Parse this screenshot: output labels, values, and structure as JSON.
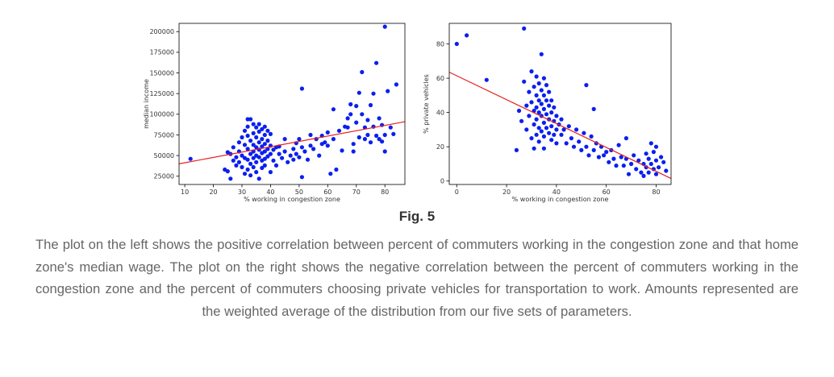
{
  "figure_label": "Fig. 5",
  "caption": "The plot on the left shows the positive correlation between percent of commuters working in the congestion zone and that home zone's median wage. The plot on the right shows the negative correlation between the percent of commuters working in the congestion zone and the percent of commuters choosing private vehicles for transportation to work. Amounts represented are the weighted average of the distribution from our five sets of parameters.",
  "colors": {
    "points": "#0a1ff0",
    "trend_line": "#e8201e",
    "axes": "#000000"
  },
  "chart_data": [
    {
      "type": "scatter",
      "xlabel": "% working in congestion zone",
      "ylabel": "median income",
      "xlim": [
        8,
        87
      ],
      "ylim": [
        15000,
        210000
      ],
      "x_ticks": [
        10,
        20,
        30,
        40,
        50,
        60,
        70,
        80
      ],
      "y_ticks": [
        25000,
        50000,
        75000,
        100000,
        125000,
        150000,
        175000,
        200000
      ],
      "grid": false,
      "trend_line": [
        [
          8,
          40000
        ],
        [
          87,
          91000
        ]
      ],
      "points": [
        [
          12,
          46000
        ],
        [
          24,
          33000
        ],
        [
          25,
          31000
        ],
        [
          25,
          54000
        ],
        [
          26,
          22000
        ],
        [
          26,
          52000
        ],
        [
          27,
          60000
        ],
        [
          27,
          44000
        ],
        [
          28,
          38000
        ],
        [
          28,
          48000
        ],
        [
          29,
          66000
        ],
        [
          29,
          55000
        ],
        [
          29,
          42000
        ],
        [
          30,
          72000
        ],
        [
          30,
          50000
        ],
        [
          30,
          36000
        ],
        [
          31,
          80000
        ],
        [
          31,
          63000
        ],
        [
          31,
          47000
        ],
        [
          31,
          28000
        ],
        [
          32,
          94000
        ],
        [
          32,
          85000
        ],
        [
          32,
          74000
        ],
        [
          32,
          58000
        ],
        [
          32,
          45000
        ],
        [
          32,
          33000
        ],
        [
          33,
          94000
        ],
        [
          33,
          68000
        ],
        [
          33,
          52000
        ],
        [
          33,
          40000
        ],
        [
          33,
          26000
        ],
        [
          34,
          88000
        ],
        [
          34,
          77000
        ],
        [
          34,
          63000
        ],
        [
          34,
          55000
        ],
        [
          34,
          47000
        ],
        [
          34,
          36000
        ],
        [
          35,
          84000
        ],
        [
          35,
          72000
        ],
        [
          35,
          60000
        ],
        [
          35,
          50000
        ],
        [
          35,
          42000
        ],
        [
          35,
          30000
        ],
        [
          36,
          88000
        ],
        [
          36,
          79000
        ],
        [
          36,
          66000
        ],
        [
          36,
          57000
        ],
        [
          36,
          48000
        ],
        [
          36,
          22000
        ],
        [
          37,
          82000
        ],
        [
          37,
          70000
        ],
        [
          37,
          61000
        ],
        [
          37,
          53000
        ],
        [
          37,
          44000
        ],
        [
          37,
          35000
        ],
        [
          38,
          85000
        ],
        [
          38,
          75000
        ],
        [
          38,
          64000
        ],
        [
          38,
          55000
        ],
        [
          38,
          46000
        ],
        [
          38,
          38000
        ],
        [
          39,
          80000
        ],
        [
          39,
          68000
        ],
        [
          39,
          58000
        ],
        [
          39,
          49000
        ],
        [
          40,
          76000
        ],
        [
          40,
          62000
        ],
        [
          40,
          52000
        ],
        [
          40,
          30000
        ],
        [
          41,
          57000
        ],
        [
          41,
          44000
        ],
        [
          42,
          60000
        ],
        [
          42,
          38000
        ],
        [
          43,
          52000
        ],
        [
          43,
          61000
        ],
        [
          44,
          47000
        ],
        [
          45,
          70000
        ],
        [
          45,
          55000
        ],
        [
          46,
          42000
        ],
        [
          47,
          50000
        ],
        [
          48,
          58000
        ],
        [
          48,
          45000
        ],
        [
          49,
          65000
        ],
        [
          49,
          52000
        ],
        [
          50,
          48000
        ],
        [
          50,
          70000
        ],
        [
          51,
          131000
        ],
        [
          51,
          60000
        ],
        [
          51,
          24000
        ],
        [
          52,
          55000
        ],
        [
          53,
          45000
        ],
        [
          54,
          62000
        ],
        [
          54,
          75000
        ],
        [
          55,
          58000
        ],
        [
          56,
          70000
        ],
        [
          57,
          50000
        ],
        [
          58,
          64000
        ],
        [
          58,
          74000
        ],
        [
          59,
          66000
        ],
        [
          60,
          78000
        ],
        [
          60,
          62000
        ],
        [
          61,
          28000
        ],
        [
          62,
          70000
        ],
        [
          62,
          106000
        ],
        [
          63,
          33000
        ],
        [
          64,
          80000
        ],
        [
          65,
          56000
        ],
        [
          66,
          85000
        ],
        [
          67,
          95000
        ],
        [
          67,
          84000
        ],
        [
          68,
          112000
        ],
        [
          68,
          100000
        ],
        [
          69,
          64000
        ],
        [
          69,
          55000
        ],
        [
          70,
          90000
        ],
        [
          70,
          110000
        ],
        [
          71,
          72000
        ],
        [
          71,
          126000
        ],
        [
          72,
          151000
        ],
        [
          72,
          100000
        ],
        [
          73,
          84000
        ],
        [
          73,
          70000
        ],
        [
          74,
          93000
        ],
        [
          74,
          75000
        ],
        [
          75,
          111000
        ],
        [
          75,
          66000
        ],
        [
          76,
          85000
        ],
        [
          76,
          125000
        ],
        [
          77,
          74000
        ],
        [
          77,
          162000
        ],
        [
          78,
          70000
        ],
        [
          78,
          95000
        ],
        [
          79,
          67000
        ],
        [
          79,
          87000
        ],
        [
          80,
          206000
        ],
        [
          80,
          55000
        ],
        [
          80,
          75000
        ],
        [
          81,
          128000
        ],
        [
          82,
          84000
        ],
        [
          83,
          76000
        ],
        [
          84,
          136000
        ]
      ]
    },
    {
      "type": "scatter",
      "xlabel": "% working in congestion zone",
      "ylabel": "% private vehicles",
      "xlim": [
        -3,
        86
      ],
      "ylim": [
        -2,
        92
      ],
      "x_ticks": [
        0,
        20,
        40,
        60,
        80
      ],
      "y_ticks": [
        0,
        20,
        40,
        60,
        80
      ],
      "grid": false,
      "trend_line": [
        [
          -3,
          63.5
        ],
        [
          86,
          1.5
        ]
      ],
      "points": [
        [
          0,
          80
        ],
        [
          4,
          85
        ],
        [
          12,
          59
        ],
        [
          24,
          18
        ],
        [
          25,
          41
        ],
        [
          26,
          35
        ],
        [
          27,
          89
        ],
        [
          27,
          58
        ],
        [
          28,
          44
        ],
        [
          28,
          30
        ],
        [
          29,
          52
        ],
        [
          29,
          38
        ],
        [
          30,
          64
        ],
        [
          30,
          46
        ],
        [
          30,
          25
        ],
        [
          31,
          55
        ],
        [
          31,
          41
        ],
        [
          31,
          33
        ],
        [
          31,
          19
        ],
        [
          32,
          61
        ],
        [
          32,
          50
        ],
        [
          32,
          43
        ],
        [
          32,
          36
        ],
        [
          32,
          27
        ],
        [
          33,
          57
        ],
        [
          33,
          47
        ],
        [
          33,
          40
        ],
        [
          33,
          31
        ],
        [
          33,
          23
        ],
        [
          34,
          74
        ],
        [
          34,
          53
        ],
        [
          34,
          45
        ],
        [
          34,
          38
        ],
        [
          34,
          29
        ],
        [
          35,
          60
        ],
        [
          35,
          50
        ],
        [
          35,
          42
        ],
        [
          35,
          34
        ],
        [
          35,
          26
        ],
        [
          35,
          19
        ],
        [
          36,
          56
        ],
        [
          36,
          47
        ],
        [
          36,
          39
        ],
        [
          36,
          31
        ],
        [
          37,
          52
        ],
        [
          37,
          44
        ],
        [
          37,
          36
        ],
        [
          37,
          28
        ],
        [
          38,
          47
        ],
        [
          38,
          40
        ],
        [
          38,
          32
        ],
        [
          38,
          24
        ],
        [
          39,
          43
        ],
        [
          39,
          35
        ],
        [
          39,
          27
        ],
        [
          40,
          38
        ],
        [
          40,
          30
        ],
        [
          40,
          22
        ],
        [
          41,
          33
        ],
        [
          42,
          36
        ],
        [
          42,
          27
        ],
        [
          43,
          30
        ],
        [
          44,
          22
        ],
        [
          45,
          32
        ],
        [
          46,
          25
        ],
        [
          47,
          20
        ],
        [
          48,
          30
        ],
        [
          49,
          23
        ],
        [
          50,
          18
        ],
        [
          51,
          28
        ],
        [
          52,
          56
        ],
        [
          52,
          20
        ],
        [
          53,
          15
        ],
        [
          54,
          26
        ],
        [
          55,
          42
        ],
        [
          55,
          18
        ],
        [
          56,
          22
        ],
        [
          57,
          14
        ],
        [
          58,
          20
        ],
        [
          59,
          15
        ],
        [
          60,
          17
        ],
        [
          61,
          11
        ],
        [
          62,
          18
        ],
        [
          63,
          13
        ],
        [
          64,
          9
        ],
        [
          65,
          21
        ],
        [
          66,
          14
        ],
        [
          67,
          9
        ],
        [
          68,
          25
        ],
        [
          68,
          13
        ],
        [
          69,
          4
        ],
        [
          70,
          10
        ],
        [
          71,
          15
        ],
        [
          72,
          7
        ],
        [
          73,
          12
        ],
        [
          74,
          5
        ],
        [
          75,
          10
        ],
        [
          75,
          3
        ],
        [
          76,
          16
        ],
        [
          76,
          8
        ],
        [
          77,
          13
        ],
        [
          77,
          5
        ],
        [
          78,
          22
        ],
        [
          78,
          10
        ],
        [
          79,
          7
        ],
        [
          79,
          17
        ],
        [
          80,
          4
        ],
        [
          80,
          12
        ],
        [
          80,
          20
        ],
        [
          81,
          8
        ],
        [
          82,
          14
        ],
        [
          83,
          11
        ],
        [
          84,
          6
        ]
      ]
    }
  ]
}
